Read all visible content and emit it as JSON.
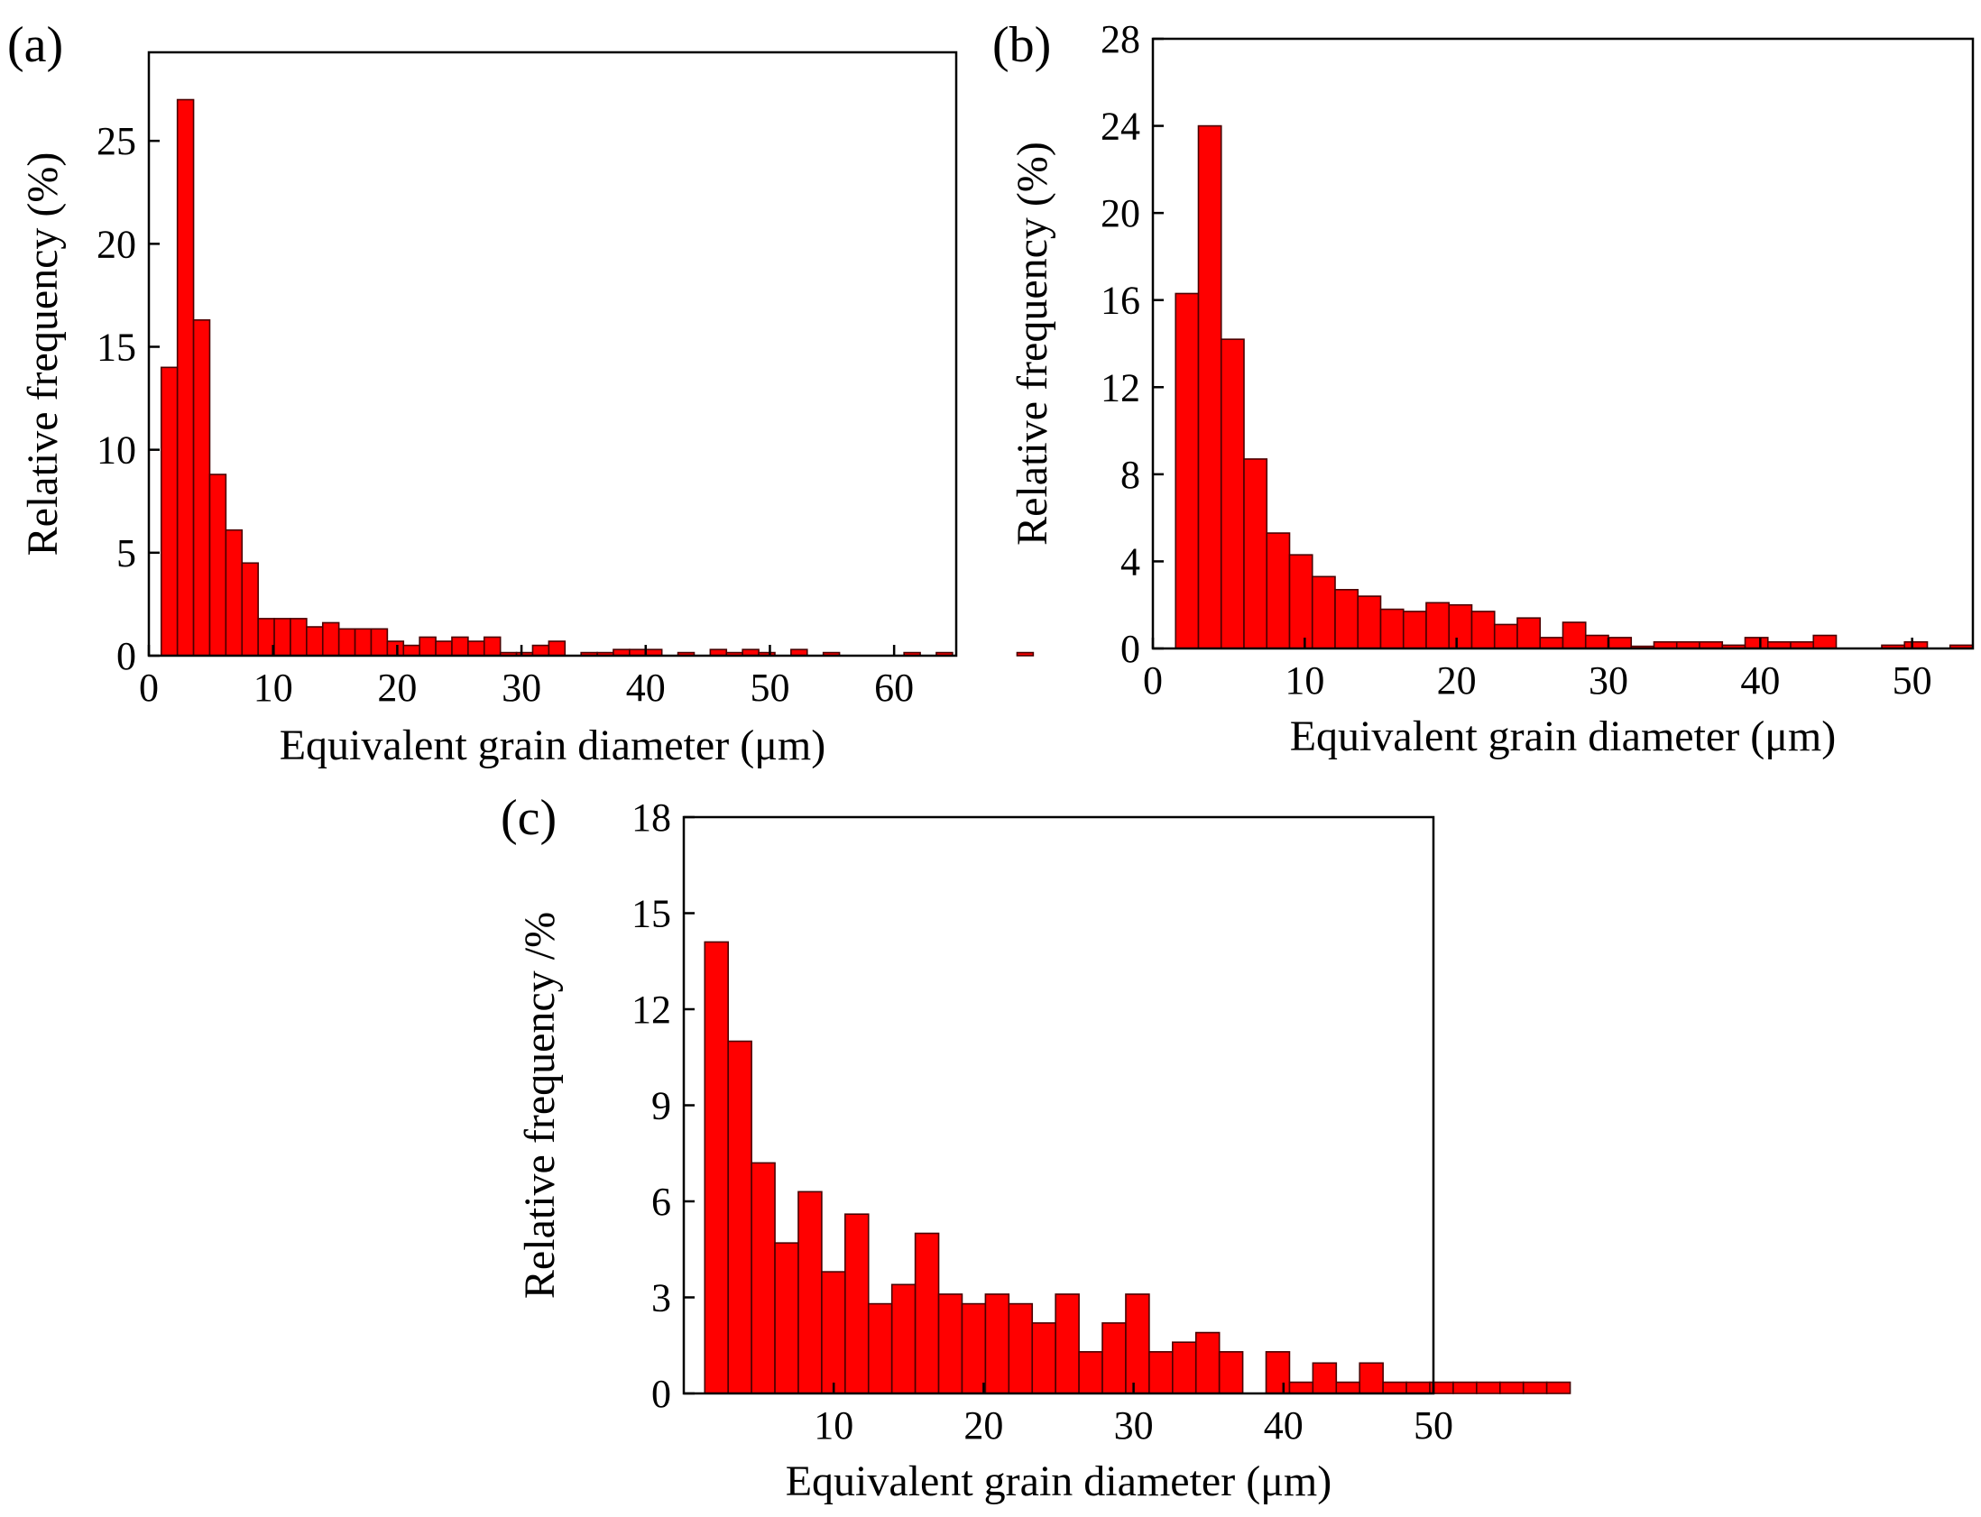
{
  "figure": {
    "panels": [
      {
        "label": "(a)",
        "xlabel": "Equivalent grain diameter (μm)",
        "ylabel": "Relative frequency (%)"
      },
      {
        "label": "(b)",
        "xlabel": "Equivalent grain diameter (μm)",
        "ylabel": "Relative frequency (%)"
      },
      {
        "label": "(c)",
        "xlabel": "Equivalent grain diameter (μm)",
        "ylabel": "Relative frequency /%"
      }
    ]
  },
  "chart_data": [
    {
      "type": "bar",
      "panel": "(a)",
      "title": "",
      "xlabel": "Equivalent grain diameter (μm)",
      "ylabel": "Relative frequency (%)",
      "xlim": [
        0,
        65
      ],
      "ylim": [
        0,
        29.3
      ],
      "xticks": [
        0,
        10,
        20,
        30,
        40,
        50,
        60
      ],
      "yticks": [
        0,
        5,
        10,
        15,
        20,
        25
      ],
      "bin_width": 1.3,
      "bin_start": 1.0,
      "values": [
        14,
        27,
        16.3,
        8.8,
        6.1,
        4.5,
        1.8,
        1.8,
        1.8,
        1.4,
        1.6,
        1.3,
        1.3,
        1.3,
        0.7,
        0.5,
        0.9,
        0.7,
        0.9,
        0.7,
        0.9,
        0.15,
        0.15,
        0.5,
        0.7,
        0,
        0.15,
        0.15,
        0.3,
        0.3,
        0.3,
        0,
        0.15,
        0,
        0.3,
        0.15,
        0.3,
        0.15,
        0,
        0.3,
        0,
        0.15,
        0,
        0,
        0,
        0,
        0.15,
        0,
        0.15,
        0,
        0,
        0,
        0,
        0.15
      ]
    },
    {
      "type": "bar",
      "panel": "(b)",
      "title": "",
      "xlabel": "Equivalent grain diameter (μm)",
      "ylabel": "Relative frequency (%)",
      "xlim": [
        0,
        54
      ],
      "ylim": [
        0,
        28
      ],
      "xticks": [
        0,
        10,
        20,
        30,
        40,
        50
      ],
      "yticks": [
        0,
        4,
        8,
        12,
        16,
        20,
        24,
        28
      ],
      "bin_width": 1.5,
      "bin_start": 1.5,
      "values": [
        16.3,
        24,
        14.2,
        8.7,
        5.3,
        4.3,
        3.3,
        2.7,
        2.4,
        1.8,
        1.7,
        2.1,
        2.0,
        1.7,
        1.1,
        1.4,
        0.5,
        1.2,
        0.6,
        0.5,
        0.1,
        0.3,
        0.3,
        0.3,
        0.15,
        0.5,
        0.3,
        0.3,
        0.6,
        0,
        0,
        0.15,
        0.3,
        0,
        0.15,
        0,
        0.15,
        0.15
      ]
    },
    {
      "type": "bar",
      "panel": "(c)",
      "title": "",
      "xlabel": "Equivalent grain diameter (μm)",
      "ylabel": "Relative frequency /%",
      "xlim": [
        0,
        50
      ],
      "ylim": [
        0,
        18
      ],
      "xticks": [
        10,
        20,
        30,
        40,
        50
      ],
      "yticks": [
        0,
        3,
        6,
        9,
        12,
        15,
        18
      ],
      "bin_width": 1.56,
      "bin_start": 1.4,
      "values": [
        14.1,
        11.0,
        7.2,
        4.7,
        6.3,
        3.8,
        5.6,
        2.8,
        3.4,
        5.0,
        3.1,
        2.8,
        3.1,
        2.8,
        2.2,
        3.1,
        1.3,
        2.2,
        3.1,
        1.3,
        1.6,
        1.9,
        1.3,
        0,
        1.3,
        0.35,
        0.95,
        0.35,
        0.95,
        0.35,
        0.35,
        0.35,
        0.35,
        0.35,
        0.35,
        0.35,
        0.35
      ]
    }
  ]
}
